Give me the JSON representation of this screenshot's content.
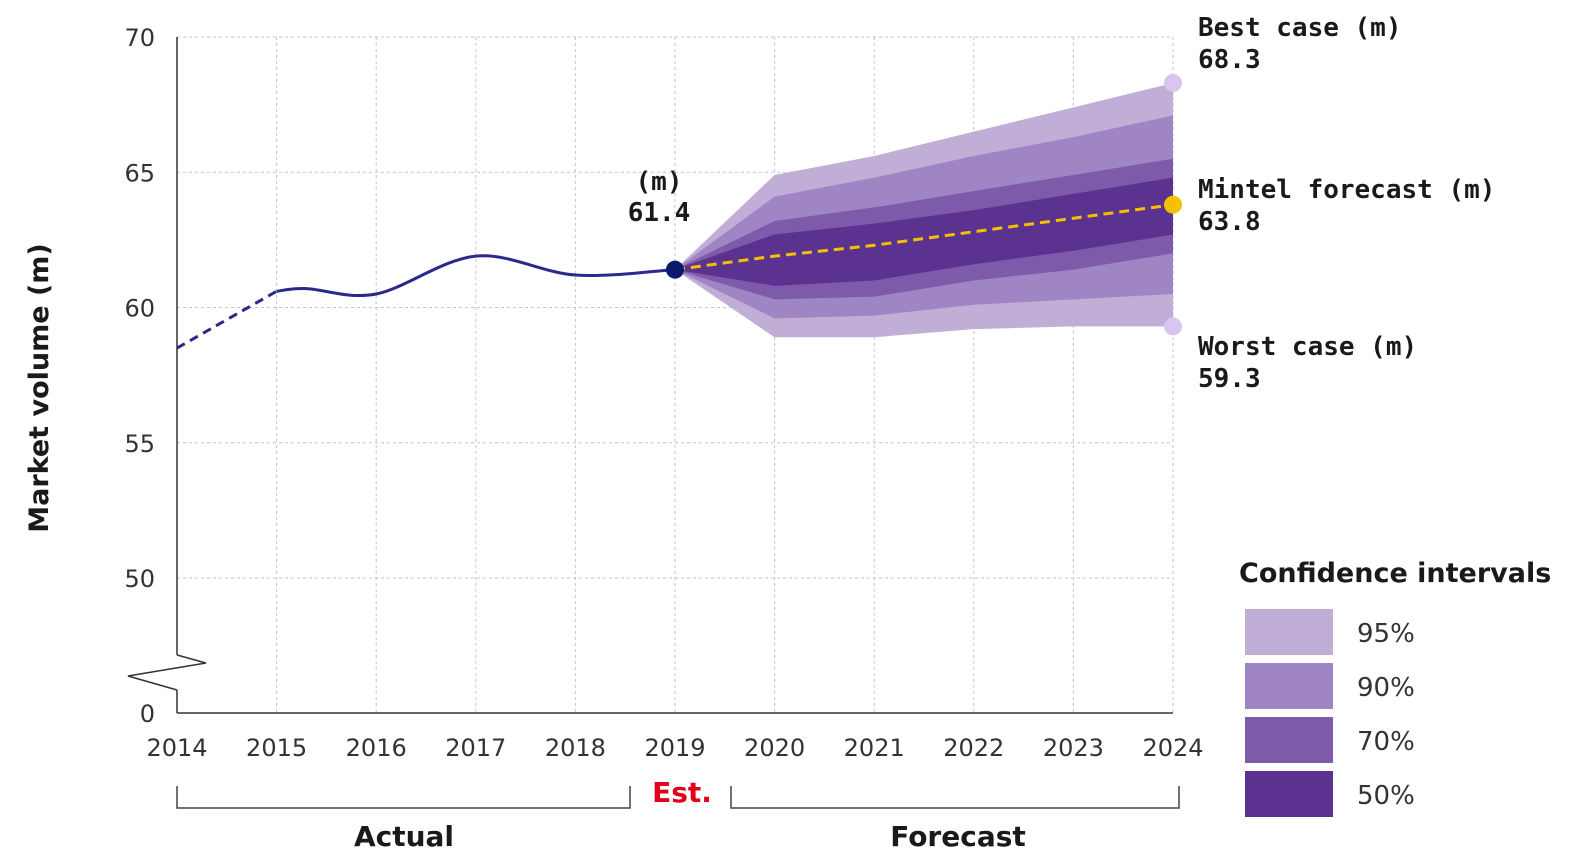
{
  "chart_data": {
    "type": "area",
    "ylabel": "Market volume (m)",
    "x_ticks": [
      "2014",
      "2015",
      "2016",
      "2017",
      "2018",
      "2019",
      "2020",
      "2021",
      "2022",
      "2023",
      "2024"
    ],
    "y_ticks": [
      0,
      50,
      55,
      60,
      65,
      70
    ],
    "ylim": [
      50,
      70
    ],
    "y_axis_break": true,
    "grid": true,
    "actual": {
      "x": [
        2014,
        2015,
        2015.3,
        2016,
        2017,
        2018,
        2019
      ],
      "y": [
        58.5,
        60.6,
        60.7,
        60.5,
        61.9,
        61.2,
        61.4
      ],
      "dashed_until": 2015
    },
    "estimate": {
      "x": 2019,
      "y": 61.4,
      "label": "(m)",
      "value_label": "61.4",
      "color": "#0b1a6e"
    },
    "forecast": {
      "x": [
        2019,
        2020,
        2021,
        2022,
        2023,
        2024
      ],
      "y": [
        61.4,
        61.9,
        62.3,
        62.8,
        63.3,
        63.8
      ],
      "color": "#f5c000"
    },
    "intervals": [
      {
        "name": "95%",
        "color": "#c1aed6",
        "lower": [
          61.4,
          58.9,
          58.9,
          59.2,
          59.3,
          59.3
        ],
        "upper": [
          61.4,
          64.9,
          65.6,
          66.5,
          67.4,
          68.3
        ]
      },
      {
        "name": "90%",
        "color": "#9f85c3",
        "lower": [
          61.4,
          59.6,
          59.7,
          60.1,
          60.3,
          60.5
        ],
        "upper": [
          61.4,
          64.1,
          64.8,
          65.6,
          66.3,
          67.1
        ]
      },
      {
        "name": "70%",
        "color": "#7e5aab",
        "lower": [
          61.4,
          60.3,
          60.4,
          61.0,
          61.4,
          62.0
        ],
        "upper": [
          61.4,
          63.2,
          63.7,
          64.3,
          64.9,
          65.5
        ]
      },
      {
        "name": "50%",
        "color": "#5b3290",
        "lower": [
          61.4,
          60.8,
          61.0,
          61.6,
          62.1,
          62.7
        ],
        "upper": [
          61.4,
          62.7,
          63.1,
          63.6,
          64.2,
          64.8
        ]
      }
    ],
    "annotations": {
      "best": {
        "label": "Best case (m)",
        "value": "68.3",
        "y": 68.3,
        "color": "#d9c6f0"
      },
      "mintel": {
        "label": "Mintel forecast (m)",
        "value": "63.8",
        "y": 63.8,
        "color": "#f5c000"
      },
      "worst": {
        "label": "Worst case (m)",
        "value": "59.3",
        "y": 59.3,
        "color": "#d9c6f0"
      }
    },
    "periods": {
      "actual": "Actual",
      "est": "Est.",
      "forecast": "Forecast"
    },
    "legend": {
      "title": "Confidence intervals",
      "position": "bottom-right",
      "items": [
        {
          "label": "95%",
          "color": "#c1aed6"
        },
        {
          "label": "90%",
          "color": "#9f85c3"
        },
        {
          "label": "70%",
          "color": "#7e5aab"
        },
        {
          "label": "50%",
          "color": "#5b3290"
        }
      ]
    },
    "actual_line_color": "#2b2a8c"
  }
}
